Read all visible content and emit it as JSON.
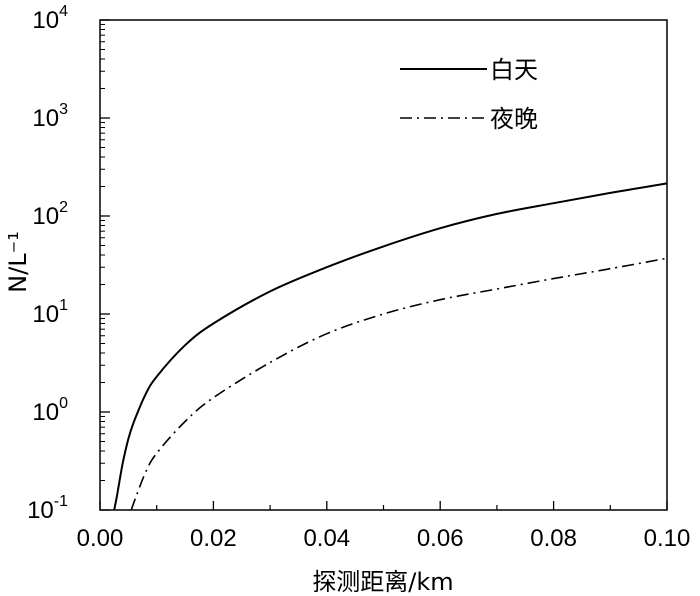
{
  "chart_data": {
    "type": "line",
    "xlabel": "探测距离/km",
    "ylabel": "N/L⁻¹",
    "xlim": [
      0.0,
      0.1
    ],
    "ylim": [
      0.1,
      10000
    ],
    "yscale": "log",
    "grid": false,
    "legend_position": "top-right",
    "x_ticks": [
      "0.00",
      "0.02",
      "0.04",
      "0.06",
      "0.08",
      "0.10"
    ],
    "y_ticks": [
      {
        "base": "10",
        "exp": "-1"
      },
      {
        "base": "10",
        "exp": "0"
      },
      {
        "base": "10",
        "exp": "1"
      },
      {
        "base": "10",
        "exp": "2"
      },
      {
        "base": "10",
        "exp": "3"
      },
      {
        "base": "10",
        "exp": "4"
      }
    ],
    "series": [
      {
        "name": "白天",
        "style": "solid",
        "x": [
          0.0025,
          0.003,
          0.004,
          0.005,
          0.006,
          0.008,
          0.01,
          0.015,
          0.02,
          0.03,
          0.04,
          0.05,
          0.06,
          0.07,
          0.08,
          0.09,
          0.1
        ],
        "y": [
          0.1,
          0.14,
          0.3,
          0.53,
          0.8,
          1.5,
          2.3,
          4.8,
          8.0,
          17,
          30,
          49,
          75,
          105,
          135,
          172,
          215
        ]
      },
      {
        "name": "夜晚",
        "style": "dashdot",
        "x": [
          0.0055,
          0.006,
          0.008,
          0.01,
          0.015,
          0.02,
          0.03,
          0.04,
          0.05,
          0.06,
          0.07,
          0.08,
          0.09,
          0.1
        ],
        "y": [
          0.1,
          0.12,
          0.24,
          0.38,
          0.8,
          1.4,
          3.2,
          6.3,
          10,
          14,
          18,
          23,
          29,
          37
        ]
      }
    ]
  }
}
